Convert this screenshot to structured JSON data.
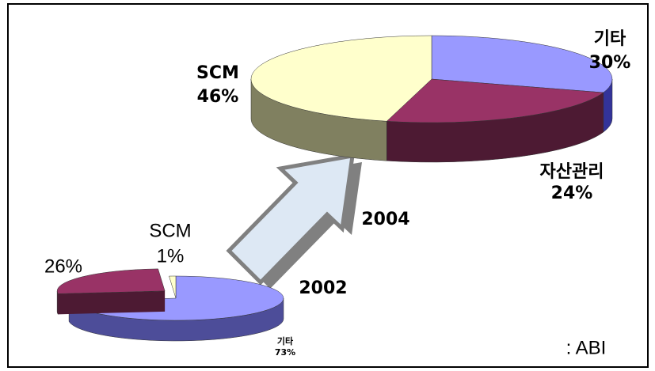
{
  "chart_data": [
    {
      "type": "pie",
      "title": "2004",
      "categories": [
        "기타",
        "자산관리",
        "SCM"
      ],
      "values": [
        30,
        24,
        46
      ],
      "value_labels": [
        "30%",
        "24%",
        "46%"
      ],
      "colors": [
        "#9999ff",
        "#993366",
        "#ffffcc"
      ],
      "side_colors": [
        "#333399",
        "#4d1a33",
        "#808060"
      ]
    },
    {
      "type": "pie",
      "title": "2002",
      "categories": [
        "기타",
        null,
        "SCM"
      ],
      "values": [
        73,
        26,
        1
      ],
      "value_labels": [
        "73%",
        "26%",
        "1%"
      ],
      "colors": [
        "#9999ff",
        "#993366",
        "#ffffcc"
      ],
      "side_colors": [
        "#4d4d99",
        "#4d1a33",
        "#808060"
      ]
    }
  ],
  "source": ": ABI"
}
